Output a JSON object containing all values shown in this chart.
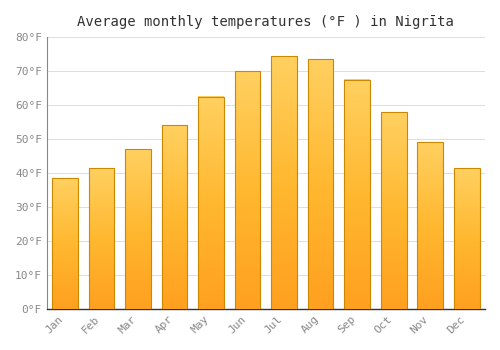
{
  "title": "Average monthly temperatures (°F ) in Nigrīta",
  "months": [
    "Jan",
    "Feb",
    "Mar",
    "Apr",
    "May",
    "Jun",
    "Jul",
    "Aug",
    "Sep",
    "Oct",
    "Nov",
    "Dec"
  ],
  "values": [
    38.5,
    41.5,
    47.0,
    54.0,
    62.5,
    70.0,
    74.5,
    73.5,
    67.5,
    58.0,
    49.0,
    41.5
  ],
  "bar_color_main": "#FFA500",
  "bar_color_light": "#FFD070",
  "bar_edge_color": "#CC8800",
  "background_color": "#FFFFFF",
  "grid_color": "#DDDDDD",
  "ylim": [
    0,
    80
  ],
  "yticks": [
    0,
    10,
    20,
    30,
    40,
    50,
    60,
    70,
    80
  ],
  "ytick_labels": [
    "0°F",
    "10°F",
    "20°F",
    "30°F",
    "40°F",
    "50°F",
    "60°F",
    "70°F",
    "80°F"
  ],
  "title_fontsize": 10,
  "tick_fontsize": 8,
  "font_family": "monospace"
}
